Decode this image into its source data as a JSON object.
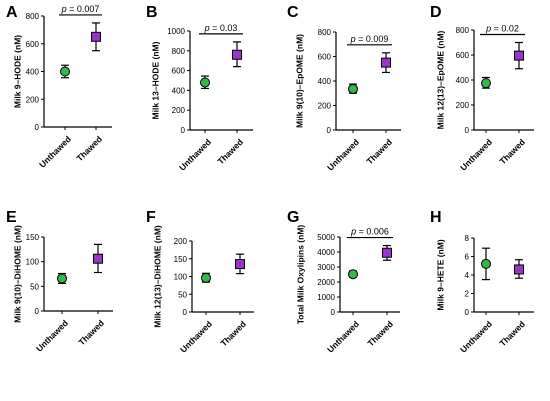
{
  "chart_data": [
    {
      "id": "A",
      "type": "scatter",
      "panel_letter": "A",
      "ylabel": "Milk 9–HODE (nM)",
      "categories": [
        "Unthawed",
        "Thawed"
      ],
      "ylim": [
        0,
        800
      ],
      "yticks": [
        0,
        200,
        400,
        600,
        800
      ],
      "series": [
        {
          "mean": 400,
          "err_low": 355,
          "err_high": 445
        },
        {
          "mean": 650,
          "err_low": 550,
          "err_high": 750
        }
      ],
      "pvalue": "p = 0.007"
    },
    {
      "id": "B",
      "type": "scatter",
      "panel_letter": "B",
      "ylabel": "Milk 13–HODE (nM)",
      "categories": [
        "Unthawed",
        "Thawed"
      ],
      "ylim": [
        0,
        1000
      ],
      "yticks": [
        0,
        200,
        400,
        600,
        800,
        1000
      ],
      "series": [
        {
          "mean": 480,
          "err_low": 420,
          "err_high": 545
        },
        {
          "mean": 760,
          "err_low": 640,
          "err_high": 890
        }
      ],
      "pvalue": "p = 0.03"
    },
    {
      "id": "C",
      "type": "scatter",
      "panel_letter": "C",
      "ylabel": "Milk 9(10)–EpOME (nM)",
      "categories": [
        "Unthawed",
        "Thawed"
      ],
      "ylim": [
        0,
        800
      ],
      "yticks": [
        0,
        200,
        400,
        600,
        800
      ],
      "series": [
        {
          "mean": 335,
          "err_low": 300,
          "err_high": 375
        },
        {
          "mean": 550,
          "err_low": 470,
          "err_high": 630
        }
      ],
      "pvalue": "p = 0.009"
    },
    {
      "id": "D",
      "type": "scatter",
      "panel_letter": "D",
      "ylabel": "Milk 12(13)–EpOME (nM)",
      "categories": [
        "Unthawed",
        "Thawed"
      ],
      "ylim": [
        0,
        800
      ],
      "yticks": [
        0,
        200,
        400,
        600,
        800
      ],
      "series": [
        {
          "mean": 375,
          "err_low": 335,
          "err_high": 420
        },
        {
          "mean": 595,
          "err_low": 490,
          "err_high": 700
        }
      ],
      "pvalue": "p = 0.02"
    },
    {
      "id": "E",
      "type": "scatter",
      "panel_letter": "E",
      "ylabel": "Milk 9(10)–DiHOME (nM)",
      "categories": [
        "Unthawed",
        "Thawed"
      ],
      "ylim": [
        0,
        150
      ],
      "yticks": [
        0,
        50,
        100,
        150
      ],
      "series": [
        {
          "mean": 66,
          "err_low": 56,
          "err_high": 76
        },
        {
          "mean": 106,
          "err_low": 78,
          "err_high": 135
        }
      ],
      "pvalue": ""
    },
    {
      "id": "F",
      "type": "scatter",
      "panel_letter": "F",
      "ylabel": "Milk 12(13)–DiHOME (nM)",
      "categories": [
        "Unthawed",
        "Thawed"
      ],
      "ylim": [
        0,
        200
      ],
      "yticks": [
        0,
        50,
        100,
        150,
        200
      ],
      "series": [
        {
          "mean": 96,
          "err_low": 84,
          "err_high": 109
        },
        {
          "mean": 135,
          "err_low": 108,
          "err_high": 163
        }
      ],
      "pvalue": ""
    },
    {
      "id": "G",
      "type": "scatter",
      "panel_letter": "G",
      "ylabel": "Total Milk Oxylipins (nM)",
      "categories": [
        "Unthawed",
        "Thawed"
      ],
      "ylim": [
        0,
        5000
      ],
      "yticks": [
        0,
        1000,
        2000,
        3000,
        4000,
        5000
      ],
      "series": [
        {
          "mean": 2520,
          "err_low": 2330,
          "err_high": 2730
        },
        {
          "mean": 3950,
          "err_low": 3450,
          "err_high": 4430
        }
      ],
      "pvalue": "p = 0.006"
    },
    {
      "id": "H",
      "type": "scatter",
      "panel_letter": "H",
      "ylabel": "Milk 9–HETE (nM)",
      "categories": [
        "Unthawed",
        "Thawed"
      ],
      "ylim": [
        0,
        8
      ],
      "yticks": [
        0,
        2,
        4,
        6,
        8
      ],
      "series": [
        {
          "mean": 5.2,
          "err_low": 3.5,
          "err_high": 6.9
        },
        {
          "mean": 4.6,
          "err_low": 3.65,
          "err_high": 5.65
        }
      ],
      "pvalue": ""
    }
  ],
  "colors": {
    "unthawed_fill": "#35b84a",
    "thawed_fill": "#9b35c9",
    "marker_stroke": "#000000",
    "axis": "#000000"
  },
  "markers": {
    "Unthawed": "circle",
    "Thawed": "square"
  }
}
